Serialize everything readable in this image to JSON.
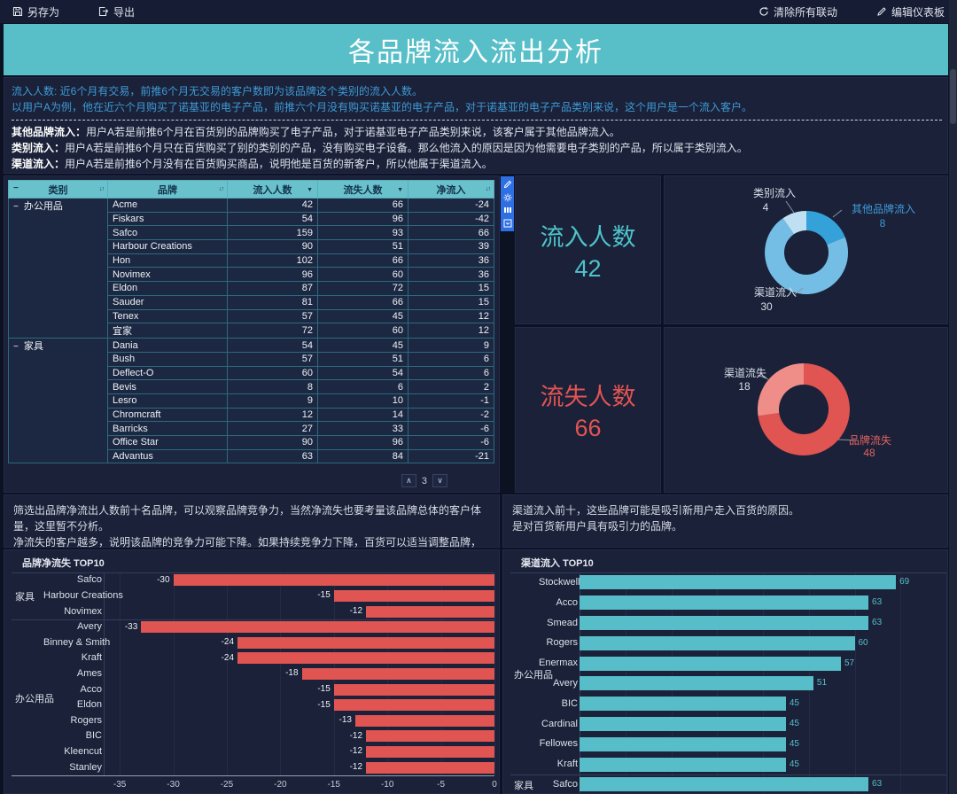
{
  "toolbar": {
    "save_as": "另存为",
    "export": "导出",
    "clear_linkage": "清除所有联动",
    "edit_dashboard": "编辑仪表板"
  },
  "title": "各品牌流入流出分析",
  "description": {
    "line1": "流入人数: 近6个月有交易，前推6个月无交易的客户数即为该品牌这个类别的流入人数。",
    "line2": "以用户A为例，他在近六个月购买了诺基亚的电子产品，前推六个月没有购买诺基亚的电子产品，对于诺基亚的电子产品类别来说，这个用户是一个流入客户。",
    "items": [
      {
        "term": "其他品牌流入：",
        "text": "用户A若是前推6个月在百货别的品牌购买了电子产品，对于诺基亚电子产品类别来说，该客户属于其他品牌流入。"
      },
      {
        "term": "类别流入：",
        "text": "用户A若是前推6个月只在百货购买了别的类别的产品，没有购买电子设备。那么他流入的原因是因为他需要电子类别的产品，所以属于类别流入。"
      },
      {
        "term": "渠道流入：",
        "text": "用户A若是前推6个月没有在百货购买商品，说明他是百货的新客户，所以他属于渠道流入。"
      }
    ]
  },
  "table": {
    "columns": [
      "类别",
      "品牌",
      "流入人数",
      "流失人数",
      "净流入"
    ],
    "groups": [
      {
        "category": "办公用品",
        "rows": [
          [
            "Acme",
            42,
            66,
            -24
          ],
          [
            "Fiskars",
            54,
            96,
            -42
          ],
          [
            "Safco",
            159,
            93,
            66
          ],
          [
            "Harbour Creations",
            90,
            51,
            39
          ],
          [
            "Hon",
            102,
            66,
            36
          ],
          [
            "Novimex",
            96,
            60,
            36
          ],
          [
            "Eldon",
            87,
            72,
            15
          ],
          [
            "Sauder",
            81,
            66,
            15
          ],
          [
            "Tenex",
            57,
            45,
            12
          ],
          [
            "宜家",
            72,
            60,
            12
          ]
        ]
      },
      {
        "category": "家具",
        "rows": [
          [
            "Dania",
            54,
            45,
            9
          ],
          [
            "Bush",
            57,
            51,
            6
          ],
          [
            "Deflect-O",
            60,
            54,
            6
          ],
          [
            "Bevis",
            8,
            6,
            2
          ],
          [
            "Lesro",
            9,
            10,
            -1
          ],
          [
            "Chromcraft",
            12,
            14,
            -2
          ],
          [
            "Barricks",
            27,
            33,
            -6
          ],
          [
            "Office Star",
            90,
            96,
            -6
          ],
          [
            "Advantus",
            63,
            84,
            -21
          ]
        ]
      }
    ],
    "selected_cell": "Acme",
    "page": "3"
  },
  "widget_toolbar_icons": [
    "edit",
    "settings",
    "detail",
    "collapse"
  ],
  "kpis": {
    "inflow": {
      "label": "流入人数",
      "value": 42,
      "color": "#4ec3ca"
    },
    "outflow": {
      "label": "流失人数",
      "value": 66,
      "color": "#e25453"
    }
  },
  "notes": {
    "left": [
      "筛选出品牌净流出人数前十名品牌，可以观察品牌竞争力，当然净流失也要考量该品牌总体的客户体量，这里暂不分析。",
      "净流失的客户越多，说明该品牌的竞争力可能下降。如果持续竞争力下降，百货可以适当调整品牌，更换更具竞争力的品牌。"
    ],
    "right": [
      "渠道流入前十，这些品牌可能是吸引新用户走入百货的原因。",
      "是对百货新用户具有吸引力的品牌。"
    ]
  },
  "chart_data": [
    {
      "type": "pie",
      "donut": true,
      "total": 42,
      "slices": [
        {
          "name": "其他品牌流入",
          "value": 8,
          "color": "#35a1d9",
          "label_color": "#3f9bd8"
        },
        {
          "name": "渠道流入",
          "value": 30,
          "color": "#74bde5",
          "label_color": "#d9dee8"
        },
        {
          "name": "类别流入",
          "value": 4,
          "color": "#bfdff2",
          "label_color": "#d9dee8"
        }
      ]
    },
    {
      "type": "pie",
      "donut": true,
      "total": 66,
      "slices": [
        {
          "name": "品牌流失",
          "value": 48,
          "color": "#e05452",
          "label_color": "#e2625f"
        },
        {
          "name": "渠道流失",
          "value": 18,
          "color": "#ef8d88",
          "label_color": "#d9dee8"
        }
      ]
    },
    {
      "type": "bar",
      "orientation": "horizontal",
      "title": "品牌净流失 TOP10",
      "xlim": [
        -36.5,
        0
      ],
      "xticks": [
        -35,
        -30,
        -25,
        -20,
        -15,
        -10,
        -5,
        0
      ],
      "bar_color": "#e05452",
      "value_label_color": "#eceef3",
      "groups": [
        {
          "category": "家具",
          "bars": [
            {
              "name": "Safco",
              "value": -30
            },
            {
              "name": "Harbour Creations",
              "value": -15
            },
            {
              "name": "Novimex",
              "value": -12
            }
          ]
        },
        {
          "category": "办公用品",
          "bars": [
            {
              "name": "Avery",
              "value": -33
            },
            {
              "name": "Binney & Smith",
              "value": -24
            },
            {
              "name": "Kraft",
              "value": -24
            },
            {
              "name": "Ames",
              "value": -18
            },
            {
              "name": "Acco",
              "value": -15
            },
            {
              "name": "Eldon",
              "value": -15
            },
            {
              "name": "Rogers",
              "value": -13
            },
            {
              "name": "BIC",
              "value": -12
            },
            {
              "name": "Kleencut",
              "value": -12
            },
            {
              "name": "Stanley",
              "value": -12
            }
          ]
        }
      ]
    },
    {
      "type": "bar",
      "orientation": "horizontal",
      "title": "渠道流入 TOP10",
      "xlim": [
        0,
        80
      ],
      "gridline_step": 10,
      "bar_color": "#57bec9",
      "value_label_color": "#57bec9",
      "groups": [
        {
          "category": "办公用品",
          "bars": [
            {
              "name": "Stockwell",
              "value": 69
            },
            {
              "name": "Acco",
              "value": 63
            },
            {
              "name": "Smead",
              "value": 63
            },
            {
              "name": "Rogers",
              "value": 60
            },
            {
              "name": "Enermax",
              "value": 57
            },
            {
              "name": "Avery",
              "value": 51
            },
            {
              "name": "BIC",
              "value": 45
            },
            {
              "name": "Cardinal",
              "value": 45
            },
            {
              "name": "Fellowes",
              "value": 45
            },
            {
              "name": "Kraft",
              "value": 45
            }
          ]
        },
        {
          "category": "家具",
          "bars": [
            {
              "name": "Safco",
              "value": 63
            }
          ]
        }
      ]
    }
  ]
}
